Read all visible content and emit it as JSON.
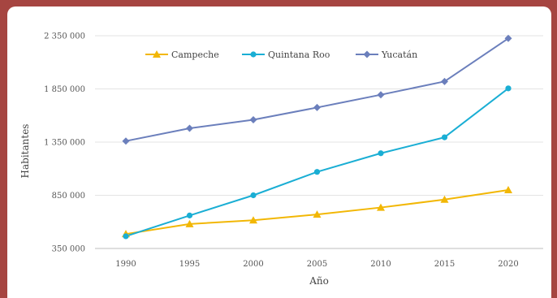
{
  "chart_data": {
    "type": "line",
    "title": "",
    "xlabel": "Año",
    "ylabel": "Habitantes",
    "categories": [
      "1990",
      "1995",
      "2000",
      "2005",
      "2010",
      "2015",
      "2020"
    ],
    "y_ticks": [
      "350 000",
      "850 000",
      "1 350 000",
      "1 850 000",
      "2 350 000"
    ],
    "y_tick_values": [
      350000,
      850000,
      1350000,
      1850000,
      2350000
    ],
    "ylim": [
      350000,
      2350000
    ],
    "grid": true,
    "legend_position": "top",
    "series": [
      {
        "name": "Campeche",
        "color": "#f2b705",
        "marker": "triangle",
        "values": [
          486000,
          580000,
          615000,
          670000,
          735000,
          810000,
          900000
        ]
      },
      {
        "name": "Quintana Roo",
        "color": "#1aaed4",
        "marker": "circle",
        "values": [
          465000,
          660000,
          850000,
          1070000,
          1245000,
          1395000,
          1855000
        ]
      },
      {
        "name": "Yucatán",
        "color": "#6b7fbc",
        "marker": "diamond",
        "values": [
          1360000,
          1480000,
          1560000,
          1675000,
          1795000,
          1920000,
          2325000
        ]
      }
    ]
  }
}
